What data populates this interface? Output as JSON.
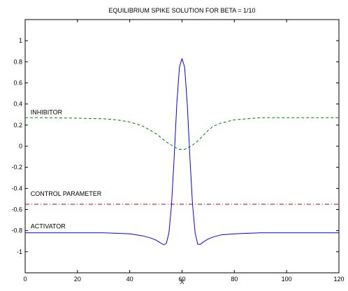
{
  "chart_data": {
    "type": "line",
    "title": "EQUILIBRIUM SPIKE SOLUTION FOR BETA = 1/10",
    "xlabel": "X",
    "ylabel": "",
    "xlim": [
      0,
      120
    ],
    "ylim": [
      -1.2,
      1.2
    ],
    "xticks": [
      0,
      20,
      40,
      60,
      80,
      100,
      120
    ],
    "yticks": [
      -1,
      -0.8,
      -0.6,
      -0.4,
      -0.2,
      0,
      0.2,
      0.4,
      0.6,
      0.8,
      1
    ],
    "grid": false,
    "annotations": [
      {
        "text": "INHIBITOR",
        "x": 1,
        "y": 0.32
      },
      {
        "text": "CONTROL PARAMETER",
        "x": 1,
        "y": -0.45
      },
      {
        "text": "ACTIVATOR",
        "x": 1,
        "y": -0.76
      }
    ],
    "series": [
      {
        "key": "activator",
        "style": "solid",
        "color": "#0000ff",
        "x": [
          0,
          10,
          20,
          30,
          40,
          45,
          48,
          50,
          52,
          53,
          54,
          55,
          56,
          57,
          58,
          59,
          60,
          61,
          62,
          63,
          64,
          65,
          66,
          67,
          68,
          70,
          72,
          75,
          80,
          90,
          100,
          110,
          120
        ],
        "y": [
          -0.82,
          -0.82,
          -0.82,
          -0.82,
          -0.83,
          -0.85,
          -0.87,
          -0.89,
          -0.92,
          -0.935,
          -0.92,
          -0.82,
          -0.55,
          -0.1,
          0.4,
          0.75,
          0.83,
          0.75,
          0.4,
          -0.1,
          -0.55,
          -0.82,
          -0.93,
          -0.93,
          -0.91,
          -0.88,
          -0.86,
          -0.84,
          -0.83,
          -0.82,
          -0.82,
          -0.82,
          -0.82
        ]
      },
      {
        "key": "inhibitor",
        "style": "dashed",
        "color": "#008000",
        "x": [
          0,
          10,
          20,
          30,
          35,
          40,
          45,
          48,
          50,
          52,
          54,
          56,
          58,
          59,
          60,
          61,
          62,
          64,
          66,
          68,
          70,
          72,
          75,
          80,
          85,
          90,
          100,
          110,
          120
        ],
        "y": [
          0.27,
          0.27,
          0.265,
          0.26,
          0.25,
          0.23,
          0.19,
          0.15,
          0.12,
          0.08,
          0.04,
          0.01,
          -0.02,
          -0.03,
          -0.03,
          -0.03,
          -0.02,
          0.01,
          0.05,
          0.1,
          0.15,
          0.19,
          0.22,
          0.25,
          0.26,
          0.27,
          0.27,
          0.27,
          0.27
        ]
      },
      {
        "key": "control",
        "style": "dashdot",
        "color": "#cc0000",
        "x": [
          0,
          120
        ],
        "y": [
          -0.55,
          -0.55
        ]
      }
    ]
  }
}
